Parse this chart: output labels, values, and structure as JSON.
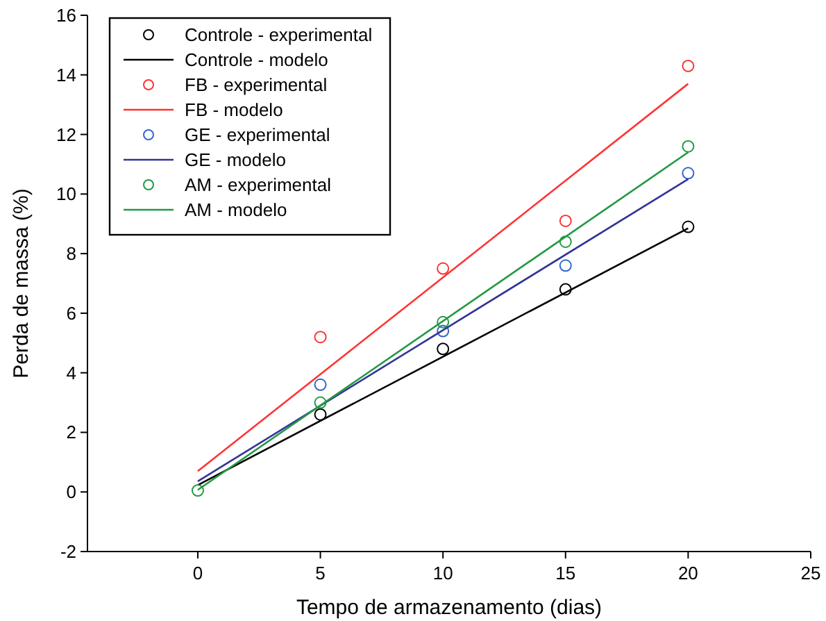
{
  "chart_data": {
    "type": "scatter",
    "xlabel": "Tempo de armazenamento (dias)",
    "ylabel": "Perda de massa (%)",
    "xlim": [
      -4.5,
      25
    ],
    "xticks": [
      0,
      5,
      10,
      15,
      20,
      25
    ],
    "ylim": [
      -2,
      16
    ],
    "yticks": [
      -2,
      0,
      2,
      4,
      6,
      8,
      10,
      12,
      14,
      16
    ],
    "grid": false,
    "legend": "top left",
    "series": [
      {
        "name": "Controle - experimental",
        "type": "scatter",
        "marker": "circle",
        "color": "#000000",
        "x": [
          5,
          10,
          15,
          20
        ],
        "values": [
          2.6,
          4.8,
          6.8,
          8.9
        ]
      },
      {
        "name": "Controle - modelo",
        "type": "line",
        "marker": "none",
        "color": "#000000",
        "x": [
          0,
          20
        ],
        "values": [
          0.23,
          8.85
        ]
      },
      {
        "name": "FB - experimental",
        "type": "scatter",
        "marker": "circle",
        "color": "#ff3333",
        "x": [
          5,
          10,
          15,
          20
        ],
        "values": [
          5.2,
          7.5,
          9.1,
          14.3
        ]
      },
      {
        "name": "FB - modelo",
        "type": "line",
        "marker": "none",
        "color": "#ff3333",
        "x": [
          0,
          20
        ],
        "values": [
          0.7,
          13.7
        ]
      },
      {
        "name": "GE - experimental",
        "type": "scatter",
        "marker": "circle",
        "color": "#3366cc",
        "x": [
          5,
          10,
          15,
          20
        ],
        "values": [
          3.6,
          5.4,
          7.6,
          10.7
        ]
      },
      {
        "name": "GE - modelo",
        "type": "line",
        "marker": "none",
        "color": "#333399",
        "x": [
          0,
          20
        ],
        "values": [
          0.36,
          10.5
        ]
      },
      {
        "name": "AM - experimental",
        "type": "scatter",
        "marker": "circle",
        "color": "#229944",
        "x": [
          0,
          5,
          10,
          15,
          20
        ],
        "values": [
          0.05,
          3.0,
          5.7,
          8.4,
          11.6
        ]
      },
      {
        "name": "AM - modelo",
        "type": "line",
        "marker": "none",
        "color": "#229944",
        "x": [
          0,
          20
        ],
        "values": [
          0.07,
          11.4
        ]
      }
    ]
  }
}
